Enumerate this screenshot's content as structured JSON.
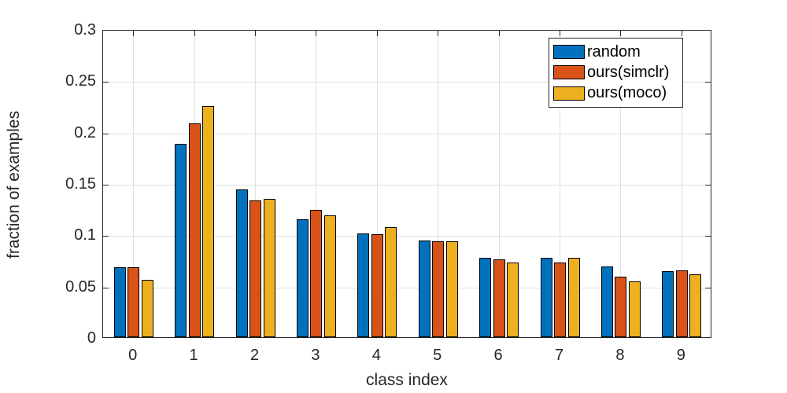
{
  "chart_data": {
    "type": "bar",
    "title": "",
    "xlabel": "class index",
    "ylabel": "fraction of examples",
    "categories": [
      "0",
      "1",
      "2",
      "3",
      "4",
      "5",
      "6",
      "7",
      "8",
      "9"
    ],
    "series": [
      {
        "name": "random",
        "color": "#0072BD",
        "values": [
          0.068,
          0.188,
          0.144,
          0.115,
          0.101,
          0.094,
          0.077,
          0.077,
          0.069,
          0.064
        ]
      },
      {
        "name": "ours(simclr)",
        "color": "#D95319",
        "values": [
          0.068,
          0.208,
          0.133,
          0.124,
          0.1,
          0.093,
          0.076,
          0.073,
          0.059,
          0.065
        ]
      },
      {
        "name": "ours(moco)",
        "color": "#EDB120",
        "values": [
          0.056,
          0.225,
          0.135,
          0.119,
          0.107,
          0.093,
          0.073,
          0.077,
          0.054,
          0.061
        ]
      }
    ],
    "ylim": [
      0,
      0.3
    ],
    "yticks": [
      0,
      0.05,
      0.1,
      0.15,
      0.2,
      0.25,
      0.3
    ],
    "ytick_labels": [
      "0",
      "0.05",
      "0.1",
      "0.15",
      "0.2",
      "0.25",
      "0.3"
    ],
    "grid": true,
    "legend_position": "top-right",
    "bar_edge_color": "#000000",
    "grid_color": "#e0e0e0",
    "axis_color": "#262626"
  }
}
